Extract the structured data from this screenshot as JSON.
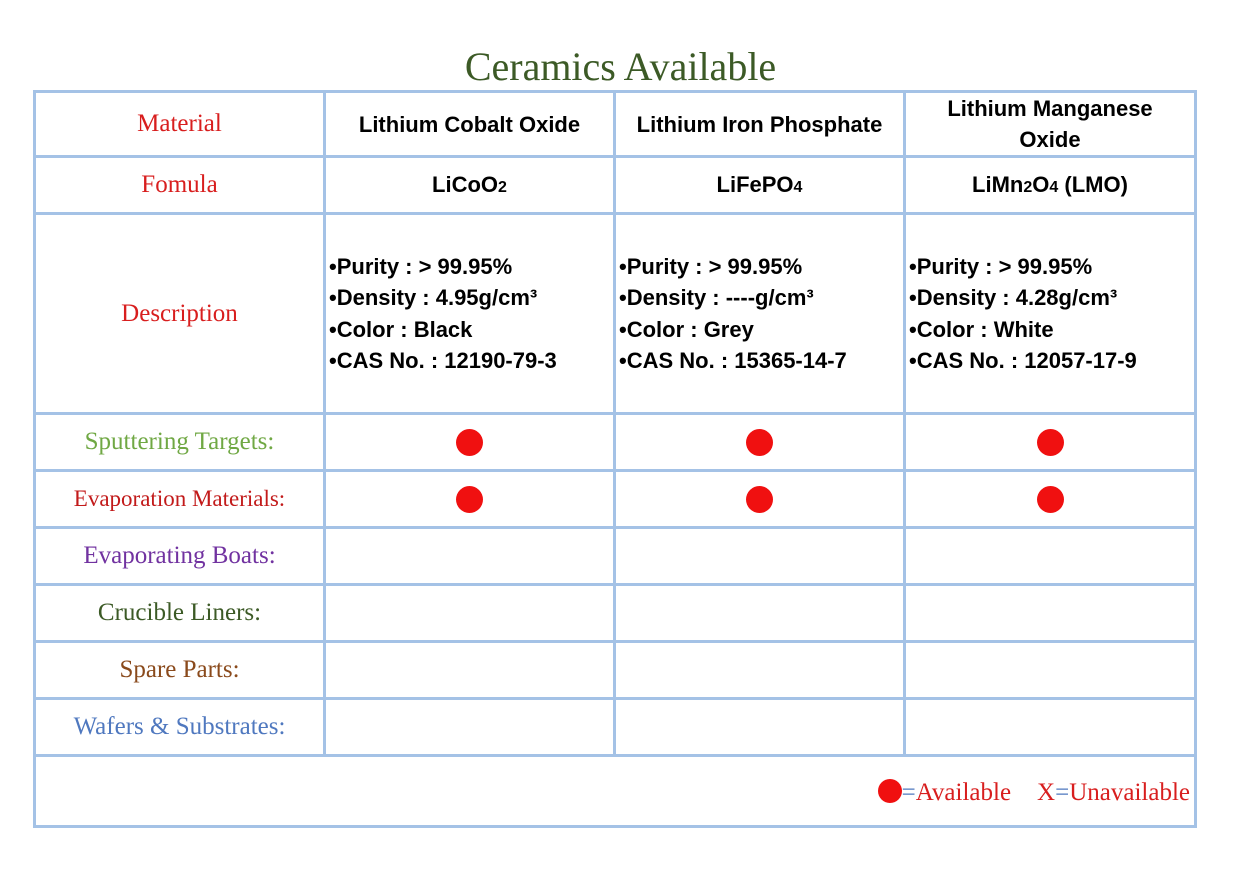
{
  "title": "Ceramics Available",
  "row_labels": {
    "material": "Material",
    "formula": "Fomula",
    "description": "Description",
    "sputtering": "Sputtering Targets:",
    "evaporation_materials": "Evaporation Materials:",
    "evaporating_boats": "Evaporating Boats:",
    "crucible_liners": "Crucible Liners:",
    "spare_parts": "Spare Parts:",
    "wafers": "Wafers & Substrates:"
  },
  "materials": [
    {
      "name": "Lithium Cobalt Oxide",
      "formula": {
        "p1": "LiCoO",
        "s1": "2",
        "p2": "",
        "s2": "",
        "p3": ""
      },
      "purity": "•Purity : > 99.95%",
      "density": "•Density : 4.95g/cm³",
      "color": "•Color : Black",
      "cas": "•CAS No. : 12190-79-3",
      "sputtering_targets": "available",
      "evaporation_materials": "available",
      "evaporating_boats": "",
      "crucible_liners": "",
      "spare_parts": "",
      "wafers_substrates": ""
    },
    {
      "name": "Lithium Iron Phosphate",
      "formula": {
        "p1": "LiFePO",
        "s1": "4",
        "p2": "",
        "s2": "",
        "p3": ""
      },
      "purity": "•Purity : > 99.95%",
      "density": "•Density : ----g/cm³",
      "color": "•Color : Grey",
      "cas": "•CAS No. : 15365-14-7",
      "sputtering_targets": "available",
      "evaporation_materials": "available",
      "evaporating_boats": "",
      "crucible_liners": "",
      "spare_parts": "",
      "wafers_substrates": ""
    },
    {
      "name": "Lithium Manganese Oxide",
      "formula": {
        "p1": "LiMn",
        "s1": "2",
        "p2": "O",
        "s2": "4",
        "p3": " (LMO)"
      },
      "purity": "•Purity : > 99.95%",
      "density": "•Density : 4.28g/cm³",
      "color": "•Color : White",
      "cas": "•CAS No. : 12057-17-9",
      "sputtering_targets": "available",
      "evaporation_materials": "available",
      "evaporating_boats": "",
      "crucible_liners": "",
      "spare_parts": "",
      "wafers_substrates": ""
    }
  ],
  "legend": {
    "equals": "=",
    "available": "Available",
    "x_mark": "X",
    "unavailable": "Unavailable"
  },
  "colors": {
    "title": "#3c5a26",
    "grid_border": "#a4c2e6",
    "available_dot": "#f01010"
  }
}
